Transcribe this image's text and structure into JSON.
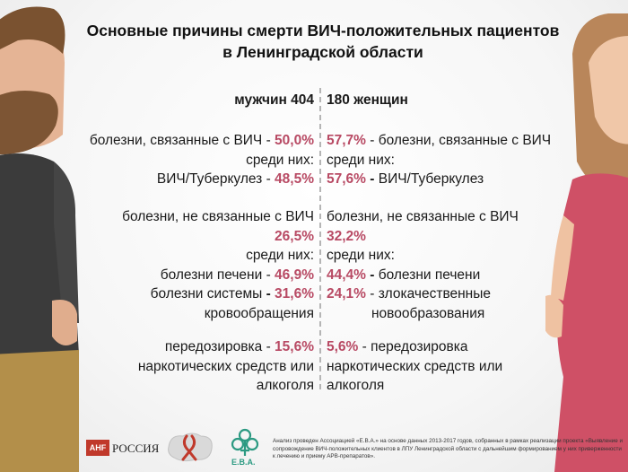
{
  "title_line1": "Основные причины смерти ВИЧ-положительных пациентов",
  "title_line2": "в Ленинградской области",
  "left": {
    "header": "мужчин 404",
    "b1_l1_text": "болезни, связанные с ВИЧ - ",
    "b1_l1_pct": "50,0%",
    "b1_l2": "среди них:",
    "b1_l3_text": "ВИЧ/Туберкулез - ",
    "b1_l3_pct": "48,5%",
    "b2_l1": "болезни, не связанные с ВИЧ",
    "b2_l2_pct": "26,5%",
    "b2_l3": "среди них:",
    "b2_l4_text": "болезни печени - ",
    "b2_l4_pct": "46,9%",
    "b2_l5_text": "болезни системы ",
    "b2_l5_dash": "- ",
    "b2_l5_pct": "31,6%",
    "b2_l6": "кровообращения",
    "b3_l1_text": "передозировка - ",
    "b3_l1_pct": "15,6%",
    "b3_l2": "наркотических средств или",
    "b3_l3": "алкоголя"
  },
  "right": {
    "header": "180 женщин",
    "b1_l1_pct": "57,7%",
    "b1_l1_text": " - болезни, связанные с ВИЧ",
    "b1_l2": "среди них:",
    "b1_l3_pct": "57,6%",
    "b1_l3_dash": " - ",
    "b1_l3_text": "ВИЧ/Туберкулез",
    "b2_l1": "болезни, не связанные с ВИЧ",
    "b2_l2_pct": "32,2%",
    "b2_l3": "среди них:",
    "b2_l4_pct": "44,4%",
    "b2_l4_dash": " - ",
    "b2_l4_text": "болезни печени",
    "b2_l5_pct": "24,1%",
    "b2_l5_text": " - злокачественные",
    "b2_l6": "новообразования",
    "b3_l1_pct": "5,6%",
    "b3_l1_text": " - передозировка",
    "b3_l2": "наркотических средств или",
    "b3_l3": "алкоголя"
  },
  "footer": {
    "ahf_logo": "AHF",
    "ahf_text": "РОССИЯ",
    "eva_text": "Е.В.А.",
    "note": "Анализ проведен  Ассоциацией «Е.В.А.»  на основе данных 2013-2017 годов, собранных  в рамках реализации проекта «Выявление и сопровождение ВИЧ-положительных клиентов в ЛПУ Ленинградской области с дальнейшим формированием у них приверженности к лечению и приему АРВ-препаратов»."
  },
  "colors": {
    "accent": "#b84a64",
    "divider": "#b5b5b5"
  }
}
